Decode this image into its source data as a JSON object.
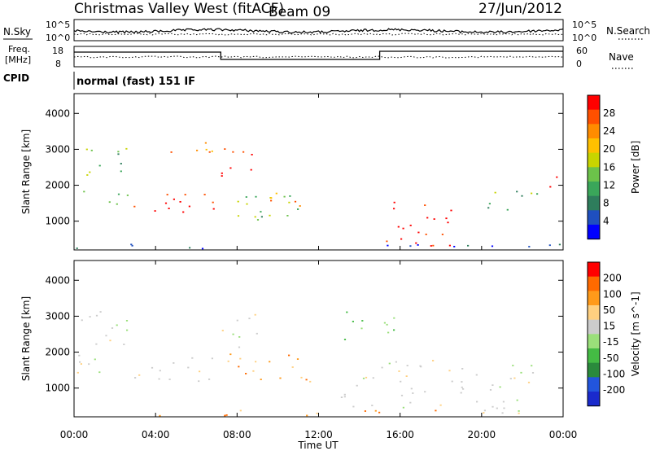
{
  "header": {
    "title": "Christmas Valley West (fitACF)",
    "beam": "Beam 09",
    "date": "27/Jun/2012"
  },
  "left_labels": {
    "nsky": "N.Sky",
    "freq": "Freq.",
    "freq_unit": "[MHz]",
    "cpid": "CPID"
  },
  "right_labels": {
    "nsearch": "N.Search",
    "nave": "Nave"
  },
  "cpid_text": "normal (fast) 151 IF",
  "axis_ticks": {
    "noise_left": [
      "10^5",
      "10^0"
    ],
    "noise_right": [
      "10^5",
      "10^0"
    ],
    "freq_left": [
      "18",
      "8"
    ],
    "nave_right": [
      "60",
      "0"
    ]
  },
  "xlabel": "Time UT",
  "colors": {
    "power_scale": [
      "#0000ff",
      "#1f4fbf",
      "#2e7d5c",
      "#3aa65a",
      "#6cc24a",
      "#c8d400",
      "#ffc000",
      "#ff8c00",
      "#ff5000",
      "#ff0000"
    ],
    "velocity_scale": [
      "#1a2acc",
      "#2255dd",
      "#2a8a3c",
      "#44bb44",
      "#9adf7a",
      "#cccccc",
      "#ffd080",
      "#ff9a1a",
      "#ff6a00",
      "#ff0000"
    ]
  },
  "chart_data": [
    {
      "type": "heatmap",
      "panel": "power",
      "ylabel": "Slant Range [km]",
      "xlabel": "",
      "x_ticks": [
        "00:00",
        "04:00",
        "08:00",
        "12:00",
        "16:00",
        "20:00",
        "00:00"
      ],
      "y_ticks": [
        1000,
        2000,
        3000,
        4000
      ],
      "xlim_hours": [
        0,
        24
      ],
      "ylim_km": [
        200,
        4550
      ],
      "colorbar": {
        "label": "Power [dB]",
        "ticks": [
          "28",
          "24",
          "20",
          "16",
          "12",
          "8",
          "4"
        ],
        "range": [
          0,
          30
        ]
      },
      "features": [
        {
          "name": "night_band_low",
          "t_start": 0.0,
          "t_end": 2.6,
          "r_low": 1400,
          "r_high": 1900,
          "level": "green"
        },
        {
          "name": "night_band_mid",
          "t_start": 0.0,
          "t_end": 2.6,
          "r_low": 2200,
          "r_high": 2700,
          "level": "green"
        },
        {
          "name": "night_band_high",
          "t_start": 0.0,
          "t_end": 2.6,
          "r_low": 2800,
          "r_high": 3300,
          "level": "green"
        },
        {
          "name": "pre_dawn_strong",
          "t_start": 2.9,
          "t_end": 7.0,
          "r_low": 1200,
          "r_high": 2000,
          "level": "red"
        },
        {
          "name": "pre_dawn_upper",
          "t_start": 4.2,
          "t_end": 7.0,
          "r_low": 2600,
          "r_high": 3200,
          "level": "orange"
        },
        {
          "name": "dawn_rising_arc",
          "t_start": 7.2,
          "t_end": 9.0,
          "r_low": 2000,
          "r_high": 3100,
          "level": "red"
        },
        {
          "name": "morning_wide",
          "t_start": 7.5,
          "t_end": 11.8,
          "r_low": 1050,
          "r_high": 2000,
          "level": "green"
        },
        {
          "name": "morning_core",
          "t_start": 9.0,
          "t_end": 11.5,
          "r_low": 1300,
          "r_high": 1800,
          "level": "orange"
        },
        {
          "name": "afternoon_strong",
          "t_start": 14.5,
          "t_end": 18.5,
          "r_low": 300,
          "r_high": 1600,
          "level": "red"
        },
        {
          "name": "evening_band",
          "t_start": 19.5,
          "t_end": 23.0,
          "r_low": 1300,
          "r_high": 1900,
          "level": "green"
        },
        {
          "name": "late_strong",
          "t_start": 23.3,
          "t_end": 24.0,
          "r_low": 1800,
          "r_high": 2500,
          "level": "red"
        },
        {
          "name": "ground_scatter_floor",
          "t_start": 0.0,
          "t_end": 24.0,
          "r_low": 250,
          "r_high": 400,
          "level": "blue"
        }
      ]
    },
    {
      "type": "heatmap",
      "panel": "velocity",
      "ylabel": "Slant Range [km]",
      "xlabel": "Time UT",
      "x_ticks": [
        "00:00",
        "04:00",
        "08:00",
        "12:00",
        "16:00",
        "20:00",
        "00:00"
      ],
      "y_ticks": [
        1000,
        2000,
        3000,
        4000
      ],
      "xlim_hours": [
        0,
        24
      ],
      "ylim_km": [
        200,
        4550
      ],
      "colorbar": {
        "label": "Velocity [m s^-1]",
        "ticks": [
          "200",
          "100",
          "50",
          "15",
          "-15",
          "-50",
          "-100",
          "-200"
        ],
        "range": [
          -250,
          250
        ]
      },
      "features": [
        {
          "name": "night_gray",
          "t_start": 0.0,
          "t_end": 2.6,
          "r_low": 1400,
          "r_high": 3300,
          "level": "gray"
        },
        {
          "name": "pre_dawn_gray",
          "t_start": 2.9,
          "t_end": 7.0,
          "r_low": 1200,
          "r_high": 2000,
          "level": "gray"
        },
        {
          "name": "dawn_gray",
          "t_start": 7.2,
          "t_end": 9.0,
          "r_low": 2000,
          "r_high": 3100,
          "level": "gray"
        },
        {
          "name": "morning_orange",
          "t_start": 7.5,
          "t_end": 11.8,
          "r_low": 1050,
          "r_high": 2000,
          "level": "orange"
        },
        {
          "name": "afternoon_gray",
          "t_start": 13.0,
          "t_end": 22.5,
          "r_low": 300,
          "r_high": 1800,
          "level": "gray"
        },
        {
          "name": "upper_green",
          "t_start": 13.0,
          "t_end": 16.0,
          "r_low": 2300,
          "r_high": 3200,
          "level": "green"
        },
        {
          "name": "ground_orange_floor",
          "t_start": 4.0,
          "t_end": 19.0,
          "r_low": 250,
          "r_high": 420,
          "level": "orange"
        }
      ]
    }
  ]
}
